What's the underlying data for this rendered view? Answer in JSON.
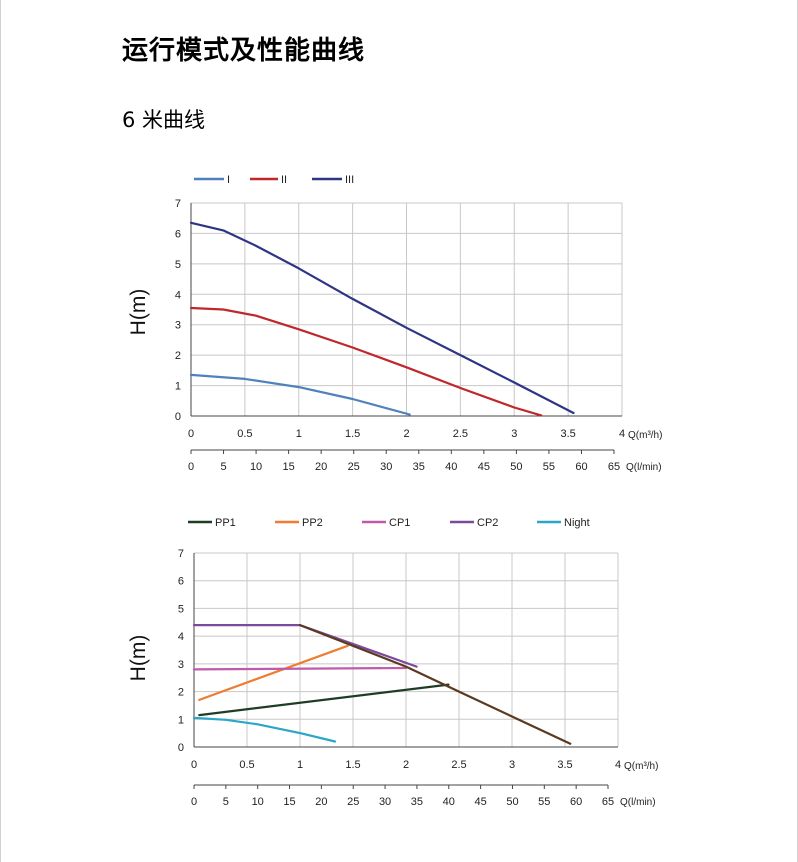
{
  "page": {
    "title": "运行模式及性能曲线",
    "subtitle": "6 米曲线"
  },
  "chart_data": [
    {
      "type": "line",
      "ylabel": "H(m)",
      "x_unit_label": "Q(m³/h)",
      "x2_unit_label": "Q(l/min)",
      "xlim": [
        0,
        4
      ],
      "ylim": [
        0,
        7
      ],
      "x_ticks": [
        "0",
        "0.5",
        "1",
        "1.5",
        "2",
        "2.5",
        "3",
        "3.5",
        "4"
      ],
      "y_ticks": [
        "0",
        "1",
        "2",
        "3",
        "4",
        "5",
        "6",
        "7"
      ],
      "x2_ticks": [
        "0",
        "5",
        "10",
        "15",
        "20",
        "25",
        "30",
        "35",
        "40",
        "45",
        "50",
        "55",
        "60",
        "65"
      ],
      "legend_position": "top-left",
      "series": [
        {
          "name": "I",
          "color": "#4f81bd",
          "points": [
            [
              0,
              1.35
            ],
            [
              0.5,
              1.22
            ],
            [
              1,
              0.95
            ],
            [
              1.5,
              0.56
            ],
            [
              2.03,
              0.05
            ]
          ]
        },
        {
          "name": "II",
          "color": "#c0272d",
          "points": [
            [
              0,
              3.55
            ],
            [
              0.3,
              3.5
            ],
            [
              0.6,
              3.3
            ],
            [
              1,
              2.85
            ],
            [
              1.5,
              2.25
            ],
            [
              2,
              1.6
            ],
            [
              2.5,
              0.92
            ],
            [
              3,
              0.28
            ],
            [
              3.25,
              0.02
            ]
          ]
        },
        {
          "name": "III",
          "color": "#2e3584",
          "points": [
            [
              0,
              6.35
            ],
            [
              0.3,
              6.1
            ],
            [
              0.6,
              5.6
            ],
            [
              1,
              4.85
            ],
            [
              1.5,
              3.85
            ],
            [
              2,
              2.9
            ],
            [
              2.5,
              2.0
            ],
            [
              3,
              1.1
            ],
            [
              3.55,
              0.1
            ]
          ]
        }
      ]
    },
    {
      "type": "line",
      "ylabel": "H(m)",
      "x_unit_label": "Q(m³/h)",
      "x2_unit_label": "Q(l/min)",
      "xlim": [
        0,
        4
      ],
      "ylim": [
        0,
        7
      ],
      "x_ticks": [
        "0",
        "0.5",
        "1",
        "1.5",
        "2",
        "2.5",
        "3",
        "3.5",
        "4"
      ],
      "y_ticks": [
        "0",
        "1",
        "2",
        "3",
        "4",
        "5",
        "6",
        "7"
      ],
      "x2_ticks": [
        "0",
        "5",
        "10",
        "15",
        "20",
        "25",
        "30",
        "35",
        "40",
        "45",
        "50",
        "55",
        "60",
        "65"
      ],
      "legend_position": "top-left",
      "series": [
        {
          "name": "PP1",
          "color": "#1f3d25",
          "points": [
            [
              0.05,
              1.15
            ],
            [
              2.4,
              2.25
            ]
          ]
        },
        {
          "name": "PP2",
          "color": "#ed7d31",
          "points": [
            [
              0.05,
              1.7
            ],
            [
              1.45,
              3.65
            ]
          ]
        },
        {
          "name": "CP1",
          "color": "#c05aa8",
          "points": [
            [
              0,
              2.8
            ],
            [
              2,
              2.85
            ]
          ]
        },
        {
          "name": "CP2",
          "color": "#7b4a9c",
          "points": [
            [
              0,
              4.4
            ],
            [
              1,
              4.4
            ],
            [
              2.1,
              2.9
            ]
          ]
        },
        {
          "name": "Night",
          "color": "#2aa6c9",
          "points": [
            [
              0,
              1.05
            ],
            [
              0.3,
              0.98
            ],
            [
              0.6,
              0.82
            ],
            [
              1,
              0.5
            ],
            [
              1.33,
              0.2
            ]
          ]
        },
        {
          "name": "",
          "color": "#5b3a20",
          "points": [
            [
              1,
              4.4
            ],
            [
              2,
              2.9
            ],
            [
              2.5,
              2.0
            ],
            [
              3,
              1.1
            ],
            [
              3.55,
              0.12
            ]
          ]
        }
      ]
    }
  ]
}
